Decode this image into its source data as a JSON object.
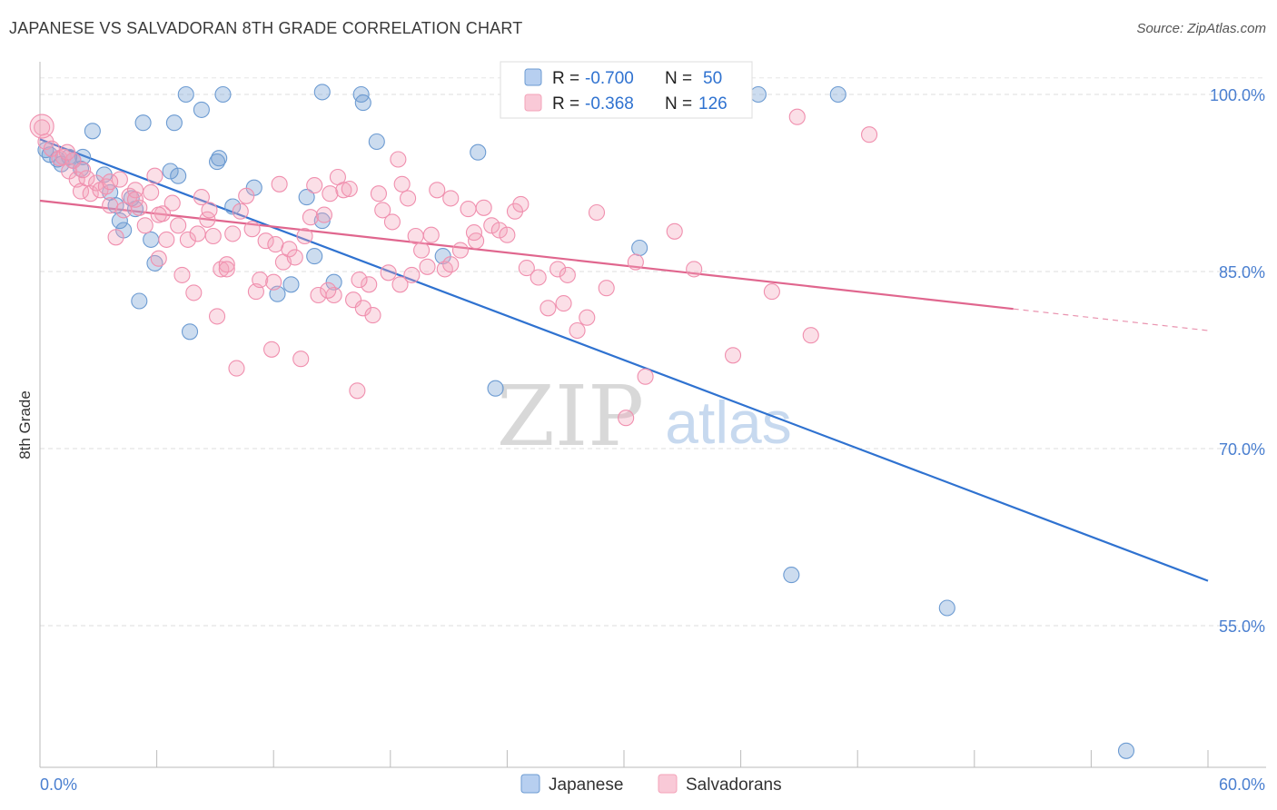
{
  "header": {
    "title": "JAPANESE VS SALVADORAN 8TH GRADE CORRELATION CHART",
    "source": "Source: ZipAtlas.com"
  },
  "watermark": {
    "zip": "ZIP",
    "atlas": "atlas"
  },
  "legend_box": {
    "rows": [
      {
        "r_label": "R =",
        "r_value": "-0.700",
        "n_label": "N =",
        "n_value": "50",
        "color": "#6c9bd2"
      },
      {
        "r_label": "R =",
        "r_value": "-0.368",
        "n_label": "N =",
        "n_value": "126",
        "color": "#f4a3b9"
      }
    ]
  },
  "chart_data": {
    "type": "scatter",
    "title": "JAPANESE VS SALVADORAN 8TH GRADE CORRELATION CHART",
    "xlabel": "",
    "ylabel": "8th Grade",
    "xlim": [
      0,
      60
    ],
    "ylim": [
      43,
      102
    ],
    "x_tick_labels": [
      "0.0%",
      "60.0%"
    ],
    "y_ticks": [
      55,
      70,
      85,
      100
    ],
    "y_tick_labels": [
      "55.0%",
      "70.0%",
      "85.0%",
      "100.0%"
    ],
    "grid": true,
    "legend_position": "bottom-center",
    "series": [
      {
        "name": "Japanese",
        "color": "#6c9bd2",
        "line_color": "#2f72d0",
        "trend": {
          "x": [
            0,
            60
          ],
          "y": [
            96.2,
            58.8
          ],
          "dashed_from_x": null
        },
        "points": [
          [
            0.3,
            95.3
          ],
          [
            0.5,
            94.9
          ],
          [
            0.9,
            94.5
          ],
          [
            1.1,
            94.1
          ],
          [
            1.5,
            94.7
          ],
          [
            1.7,
            94.4
          ],
          [
            2.1,
            93.7
          ],
          [
            2.2,
            94.7
          ],
          [
            2.7,
            96.9
          ],
          [
            3.3,
            93.2
          ],
          [
            3.6,
            91.7
          ],
          [
            3.9,
            90.6
          ],
          [
            4.1,
            89.3
          ],
          [
            4.3,
            88.5
          ],
          [
            4.7,
            91.2
          ],
          [
            4.9,
            90.3
          ],
          [
            5.1,
            82.5
          ],
          [
            5.3,
            97.6
          ],
          [
            5.7,
            87.7
          ],
          [
            5.9,
            85.7
          ],
          [
            6.7,
            93.5
          ],
          [
            6.9,
            97.6
          ],
          [
            7.1,
            93.1
          ],
          [
            7.5,
            100.0
          ],
          [
            7.7,
            79.9
          ],
          [
            8.3,
            98.7
          ],
          [
            9.1,
            94.3
          ],
          [
            9.2,
            94.6
          ],
          [
            9.4,
            100.0
          ],
          [
            9.9,
            90.5
          ],
          [
            11.0,
            92.1
          ],
          [
            12.2,
            83.1
          ],
          [
            12.9,
            83.9
          ],
          [
            13.7,
            91.3
          ],
          [
            14.1,
            86.3
          ],
          [
            14.5,
            89.3
          ],
          [
            15.1,
            84.1
          ],
          [
            16.5,
            100.0
          ],
          [
            16.6,
            99.3
          ],
          [
            17.3,
            96.0
          ],
          [
            20.7,
            86.3
          ],
          [
            22.5,
            95.1
          ],
          [
            23.4,
            75.1
          ],
          [
            30.8,
            87.0
          ],
          [
            36.9,
            100.0
          ],
          [
            38.6,
            59.3
          ],
          [
            41.0,
            100.0
          ],
          [
            46.6,
            56.5
          ],
          [
            55.8,
            44.4
          ],
          [
            14.5,
            100.2
          ]
        ]
      },
      {
        "name": "Salvadorans",
        "color": "#f4a3b9",
        "line_color": "#e0668e",
        "trend": {
          "x": [
            0,
            60
          ],
          "y": [
            91.0,
            80.0
          ],
          "dashed_from_x": 50
        },
        "points": [
          [
            0.1,
            97.2
          ],
          [
            0.3,
            96.0
          ],
          [
            0.6,
            95.4
          ],
          [
            1.0,
            94.6
          ],
          [
            1.2,
            94.7
          ],
          [
            1.5,
            93.5
          ],
          [
            1.7,
            94.4
          ],
          [
            1.9,
            92.8
          ],
          [
            2.1,
            91.8
          ],
          [
            2.4,
            92.9
          ],
          [
            2.6,
            91.6
          ],
          [
            2.9,
            92.5
          ],
          [
            3.1,
            91.9
          ],
          [
            3.4,
            92.2
          ],
          [
            3.6,
            90.6
          ],
          [
            3.9,
            87.9
          ],
          [
            4.1,
            92.8
          ],
          [
            4.3,
            90.2
          ],
          [
            4.6,
            91.4
          ],
          [
            4.9,
            91.9
          ],
          [
            5.1,
            90.4
          ],
          [
            5.4,
            88.9
          ],
          [
            5.7,
            91.7
          ],
          [
            5.9,
            93.1
          ],
          [
            6.1,
            86.1
          ],
          [
            6.3,
            89.9
          ],
          [
            6.5,
            87.7
          ],
          [
            6.8,
            90.8
          ],
          [
            7.1,
            88.9
          ],
          [
            7.3,
            84.7
          ],
          [
            7.6,
            87.7
          ],
          [
            7.9,
            83.2
          ],
          [
            8.1,
            88.2
          ],
          [
            8.3,
            91.3
          ],
          [
            8.6,
            89.4
          ],
          [
            8.9,
            88.0
          ],
          [
            9.1,
            81.2
          ],
          [
            9.3,
            85.2
          ],
          [
            9.6,
            85.6
          ],
          [
            9.9,
            88.2
          ],
          [
            10.1,
            76.8
          ],
          [
            10.3,
            90.1
          ],
          [
            10.6,
            91.4
          ],
          [
            10.9,
            88.6
          ],
          [
            11.1,
            83.3
          ],
          [
            11.3,
            84.3
          ],
          [
            11.6,
            87.6
          ],
          [
            11.9,
            78.4
          ],
          [
            12.1,
            87.3
          ],
          [
            12.3,
            92.4
          ],
          [
            12.5,
            85.8
          ],
          [
            12.8,
            86.9
          ],
          [
            13.1,
            86.2
          ],
          [
            13.4,
            77.6
          ],
          [
            13.6,
            88.0
          ],
          [
            13.9,
            89.6
          ],
          [
            14.1,
            92.3
          ],
          [
            14.3,
            83.0
          ],
          [
            14.6,
            89.8
          ],
          [
            14.9,
            91.6
          ],
          [
            15.1,
            83.0
          ],
          [
            15.3,
            93.0
          ],
          [
            15.6,
            91.9
          ],
          [
            15.9,
            92.0
          ],
          [
            16.1,
            82.6
          ],
          [
            16.3,
            74.9
          ],
          [
            16.6,
            81.9
          ],
          [
            16.9,
            83.9
          ],
          [
            17.1,
            81.3
          ],
          [
            17.4,
            91.6
          ],
          [
            17.6,
            90.2
          ],
          [
            17.9,
            84.9
          ],
          [
            18.1,
            89.2
          ],
          [
            18.4,
            94.5
          ],
          [
            18.6,
            92.4
          ],
          [
            18.9,
            91.2
          ],
          [
            19.1,
            84.7
          ],
          [
            19.3,
            88.0
          ],
          [
            19.6,
            86.8
          ],
          [
            19.9,
            85.4
          ],
          [
            20.1,
            88.1
          ],
          [
            20.4,
            91.9
          ],
          [
            20.8,
            85.2
          ],
          [
            21.1,
            91.2
          ],
          [
            21.6,
            86.8
          ],
          [
            22.0,
            90.3
          ],
          [
            22.4,
            87.6
          ],
          [
            22.8,
            90.4
          ],
          [
            23.2,
            88.9
          ],
          [
            23.6,
            88.5
          ],
          [
            24.0,
            88.1
          ],
          [
            24.4,
            90.1
          ],
          [
            25.0,
            85.3
          ],
          [
            25.6,
            84.5
          ],
          [
            26.1,
            81.9
          ],
          [
            26.6,
            85.2
          ],
          [
            27.1,
            84.7
          ],
          [
            27.6,
            80.0
          ],
          [
            28.1,
            81.1
          ],
          [
            28.6,
            90.0
          ],
          [
            29.1,
            83.6
          ],
          [
            30.1,
            72.6
          ],
          [
            30.6,
            85.8
          ],
          [
            31.1,
            76.1
          ],
          [
            32.6,
            88.4
          ],
          [
            33.6,
            85.2
          ],
          [
            35.6,
            77.9
          ],
          [
            37.6,
            83.3
          ],
          [
            38.9,
            98.1
          ],
          [
            39.6,
            79.6
          ],
          [
            42.6,
            96.6
          ],
          [
            26.9,
            82.3
          ],
          [
            21.1,
            85.6
          ],
          [
            16.4,
            84.3
          ],
          [
            9.6,
            85.2
          ],
          [
            6.1,
            89.8
          ],
          [
            3.6,
            92.6
          ],
          [
            2.2,
            93.6
          ],
          [
            1.4,
            95.1
          ],
          [
            4.9,
            91.1
          ],
          [
            8.7,
            90.2
          ],
          [
            12.0,
            84.1
          ],
          [
            18.5,
            83.9
          ],
          [
            22.3,
            88.3
          ],
          [
            24.7,
            90.7
          ],
          [
            14.8,
            83.4
          ]
        ]
      }
    ]
  }
}
